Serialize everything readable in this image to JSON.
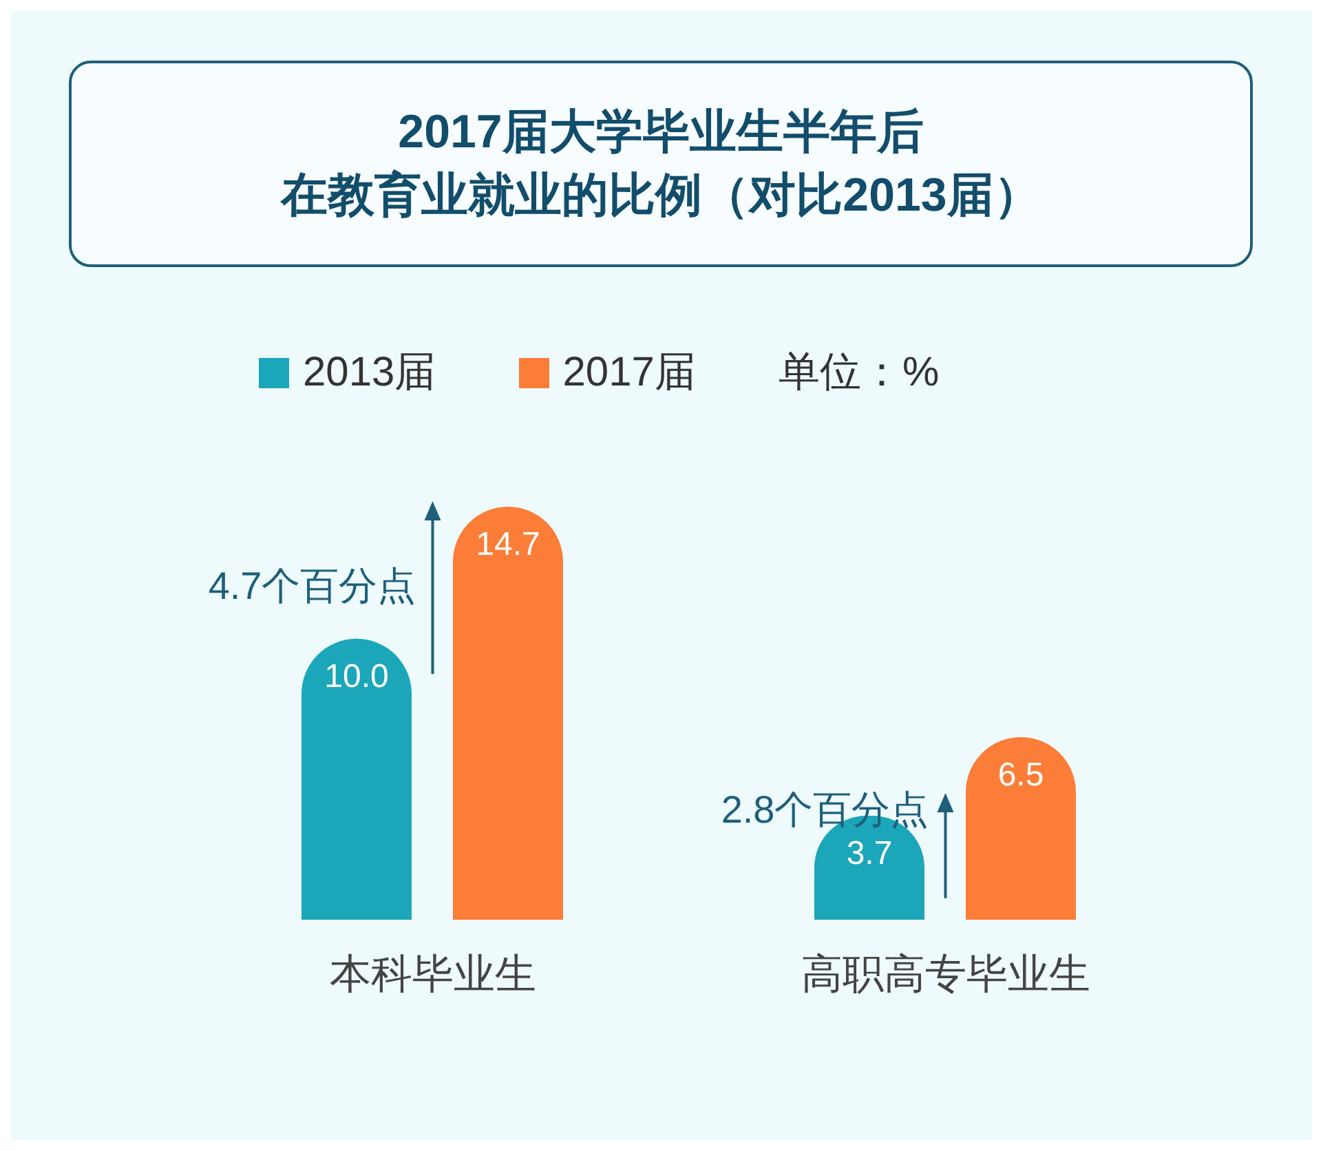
{
  "chart_data": {
    "type": "bar",
    "title": "2017届大学毕业生半年后",
    "subtitle": "在教育业就业的比例（对比2013届）",
    "categories": [
      "本科毕业生",
      "高职高专毕业生"
    ],
    "series": [
      {
        "name": "2013届",
        "color": "#1ba6b9",
        "values": [
          10.0,
          3.7
        ],
        "value_labels": [
          "10.0",
          "3.7"
        ]
      },
      {
        "name": "2017届",
        "color": "#fb7d37",
        "values": [
          14.7,
          6.5
        ],
        "value_labels": [
          "14.7",
          "6.5"
        ]
      }
    ],
    "legend": "top",
    "annotations": [
      "4.7个百分点",
      "2.8个百分点",
      "单位：%"
    ]
  }
}
